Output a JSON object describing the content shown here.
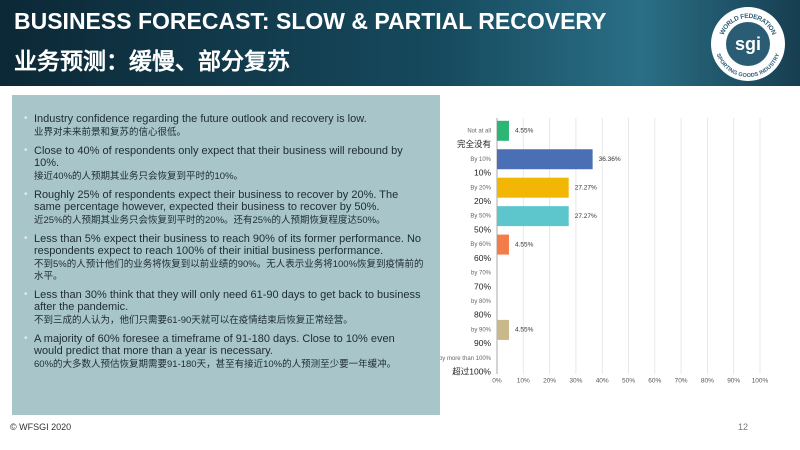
{
  "header": {
    "title": "BUSINESS FORECAST: SLOW & PARTIAL RECOVERY",
    "subtitle": "业务预测：缓慢、部分复苏",
    "logo": "sgi",
    "logo_ring_top": "WORLD FEDERATION",
    "logo_ring_bottom": "SPORTING GOODS INDUSTRY"
  },
  "bullets": [
    {
      "en": "Industry confidence regarding the future outlook  and recovery is low.",
      "zh": "业界对未来前景和复苏的信心很低。"
    },
    {
      "en": "Close to 40% of respondents only expect that their business will rebound by 10%.",
      "zh": "接近40%的人预期其业务只会恢复到平时的10%。"
    },
    {
      "en": "Roughly 25% of respondents expect their business  to recover by 20%. The same percentage however,  expected their business to recover by 50%.",
      "zh": "近25%的人预期其业务只会恢复到平时的20%。还有25%的人预期恢复程度达50%。"
    },
    {
      "en": "Less  than  5%  expect  their  business  to  reach  90%  of    its  former performance. No respondents expect to   reach 100% of their initial business performance.",
      "zh": "不到5%的人预计他们的业务将恢复到以前业绩的90%。无人表示业务将100%恢复到疫情前的水平。"
    },
    {
      "en": "Less than 30% think that they will only need 61-90 days to get back to business after the pandemic.",
      "zh": "不到三成的人认为，他们只需要61-90天就可以在疫情结束后恢复正常经营。"
    },
    {
      "en": "A majority of 60% foresee a timeframe of 91-180  days. Close to 10% even would predict that more  than a year is necessary.",
      "zh": "60%的大多数人预估恢复期需要91-180天，甚至有接近10%的人预测至少要一年缓冲。"
    }
  ],
  "chart_data": {
    "type": "barh",
    "categories": [
      "Not at all",
      "By 10%",
      "By 20%",
      "By 50%",
      "By 60%",
      "by 70%",
      "by 80%",
      "by 90%",
      "by more than 100%"
    ],
    "categories_zh": [
      "完全没有",
      "10%",
      "20%",
      "50%",
      "60%",
      "70%",
      "80%",
      "90%",
      "超过100%"
    ],
    "values": [
      4.55,
      36.36,
      27.27,
      27.27,
      4.55,
      0,
      0,
      4.55,
      0
    ],
    "value_labels": [
      "4.55%",
      "36.36%",
      "27.27%",
      "27.27%",
      "4.55%",
      null,
      null,
      "4.55%",
      null
    ],
    "colors": [
      "#2bb673",
      "#4a6fb5",
      "#f2b705",
      "#5cc6cc",
      "#f47c48",
      "#9aa0a6",
      "#9aa0a6",
      "#c8b88a",
      "#9aa0a6"
    ],
    "xlim": [
      0,
      100
    ],
    "xticks": [
      {
        "value": 0,
        "label": "0%"
      },
      {
        "value": 10,
        "label": "10%"
      },
      {
        "value": 20,
        "label": "20%"
      },
      {
        "value": 30,
        "label": "30%"
      },
      {
        "value": 40,
        "label": "40%"
      },
      {
        "value": 50,
        "label": "50%"
      },
      {
        "value": 60,
        "label": "60%"
      },
      {
        "value": 70,
        "label": "70%"
      },
      {
        "value": 80,
        "label": "80%"
      },
      {
        "value": 90,
        "label": "90%"
      },
      {
        "value": 100,
        "label": "100%"
      }
    ],
    "grid": true
  },
  "footer": {
    "copyright": "© WFSGI 2020",
    "page": "12"
  }
}
